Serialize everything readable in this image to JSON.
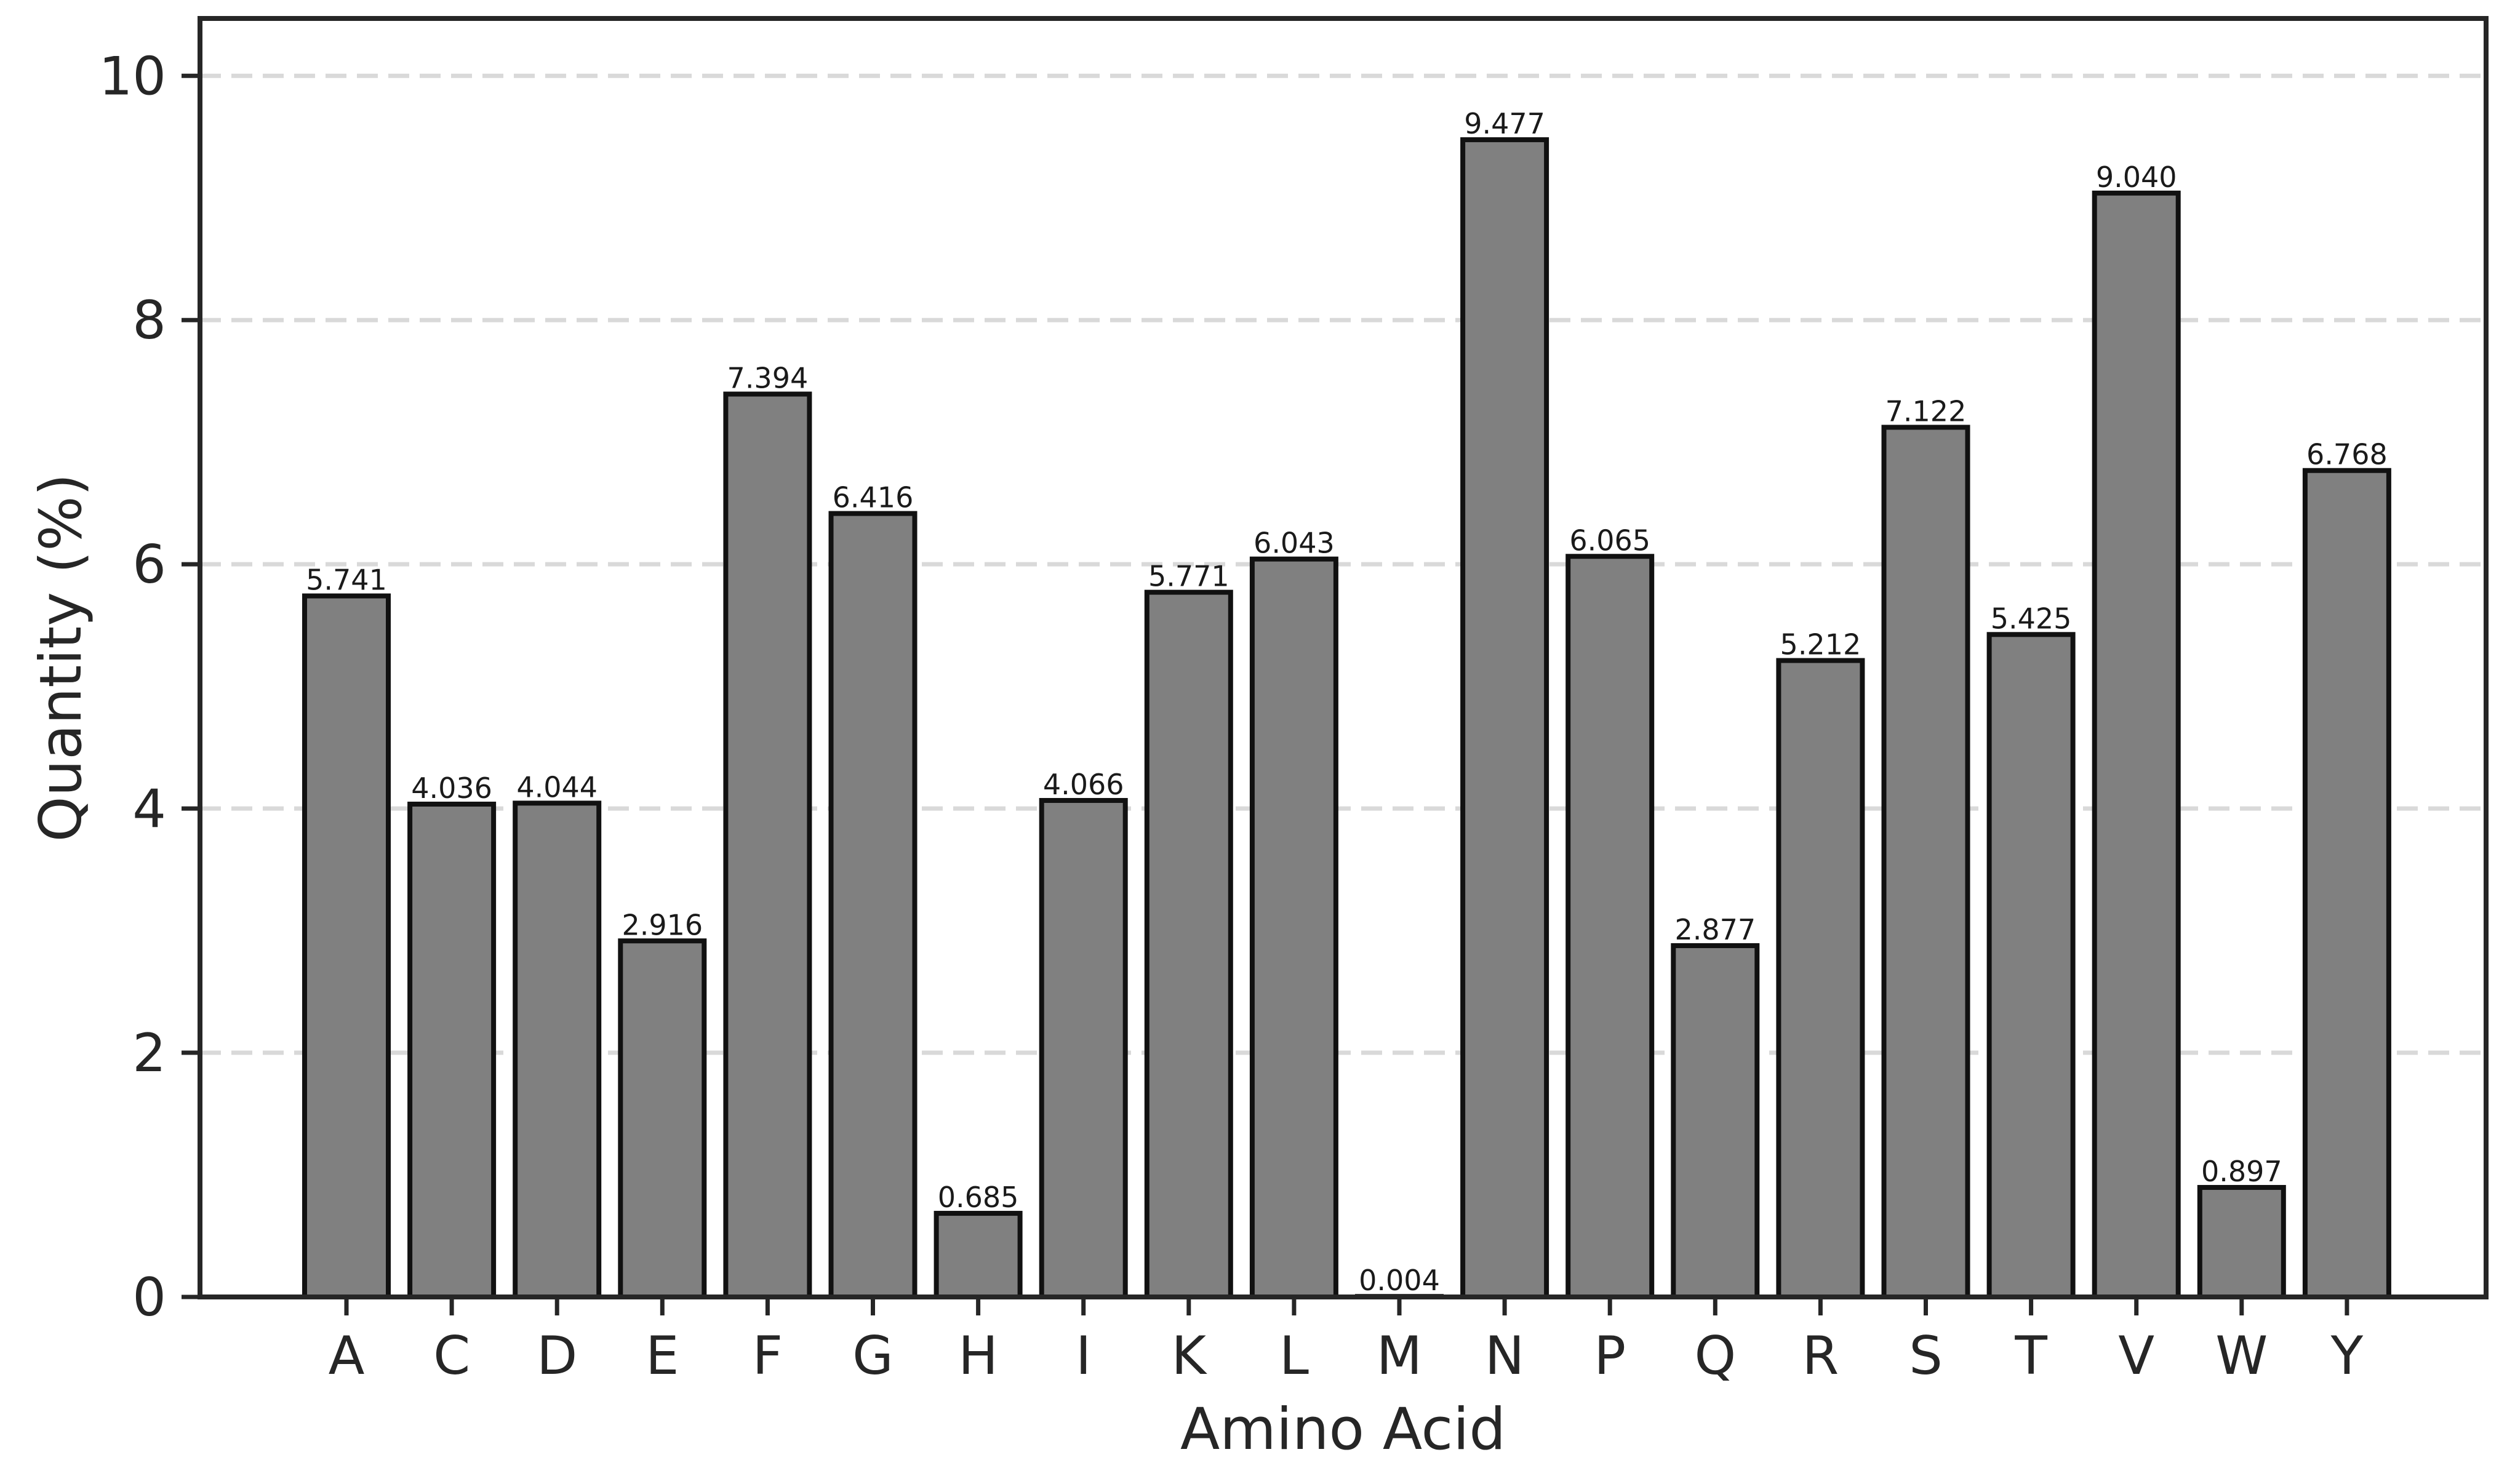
{
  "chart_data": {
    "type": "bar",
    "xlabel": "Amino Acid",
    "ylabel": "Quantity (%)",
    "categories": [
      "A",
      "C",
      "D",
      "E",
      "F",
      "G",
      "H",
      "I",
      "K",
      "L",
      "M",
      "N",
      "P",
      "Q",
      "R",
      "S",
      "T",
      "V",
      "W",
      "Y"
    ],
    "values": [
      5.741,
      4.036,
      4.044,
      2.916,
      7.394,
      6.416,
      0.685,
      4.066,
      5.771,
      6.043,
      0.004,
      9.477,
      6.065,
      2.877,
      5.212,
      7.122,
      5.425,
      9.04,
      0.897,
      6.768
    ],
    "value_labels": [
      "5.741",
      "4.036",
      "4.044",
      "2.916",
      "7.394",
      "6.416",
      "0.685",
      "4.066",
      "5.771",
      "6.043",
      "0.004",
      "9.477",
      "6.065",
      "2.877",
      "5.212",
      "7.122",
      "5.425",
      "9.040",
      "0.897",
      "6.768"
    ],
    "ylim": [
      0,
      10.47
    ],
    "yticks": [
      0,
      2,
      4,
      6,
      8,
      10
    ],
    "ytick_labels": [
      "0",
      "2",
      "4",
      "6",
      "8",
      "10"
    ],
    "grid": "horizontal-dashed",
    "bar_color": "#808080",
    "edge_color": "#111111",
    "grid_color": "#d9d9d9"
  }
}
